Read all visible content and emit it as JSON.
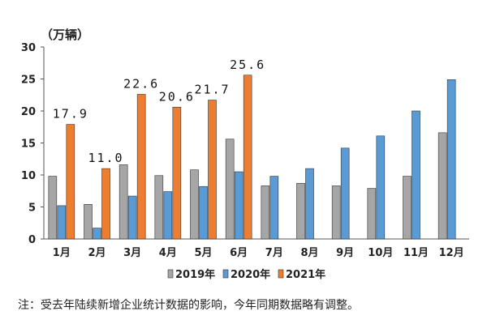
{
  "chart_data": {
    "type": "bar",
    "unit_label": "（万辆）",
    "categories": [
      "1月",
      "2月",
      "3月",
      "4月",
      "5月",
      "6月",
      "7月",
      "8月",
      "9月",
      "10月",
      "11月",
      "12月"
    ],
    "series": [
      {
        "name": "2019年",
        "color": "#a6a6a6",
        "values": [
          9.8,
          5.4,
          11.6,
          9.9,
          10.8,
          15.6,
          8.3,
          8.7,
          8.3,
          7.9,
          9.8,
          16.6
        ]
      },
      {
        "name": "2020年",
        "color": "#5b9bd5",
        "values": [
          5.2,
          1.7,
          6.7,
          7.4,
          8.2,
          10.5,
          9.8,
          11.0,
          14.2,
          16.1,
          20.0,
          24.9
        ]
      },
      {
        "name": "2021年",
        "color": "#ed7d31",
        "values": [
          17.9,
          11.0,
          22.6,
          20.6,
          21.7,
          25.6,
          null,
          null,
          null,
          null,
          null,
          null
        ]
      }
    ],
    "data_labels": [
      "17.9",
      "11.0",
      "22.6",
      "20.6",
      "21.7",
      "25.6"
    ],
    "ylim": [
      0,
      30
    ],
    "yticks": [
      "0",
      "5",
      "10",
      "15",
      "20",
      "25",
      "30"
    ],
    "legend_position": "bottom",
    "grid": false
  },
  "note": "注：受去年陆续新增企业统计数据的影响，今年同期数据略有调整。"
}
